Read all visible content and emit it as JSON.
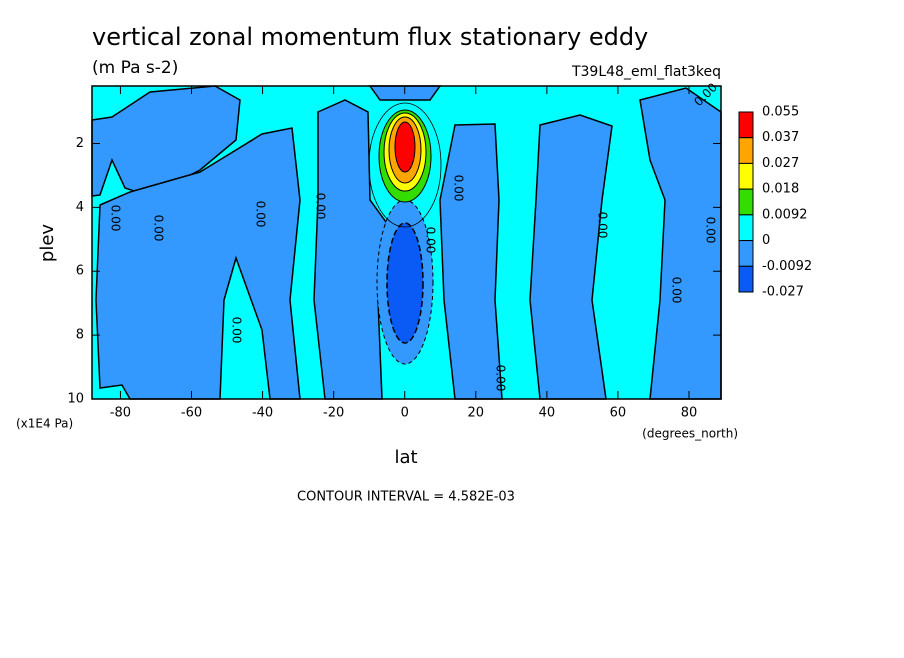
{
  "chart_data": {
    "type": "contour",
    "title": "vertical zonal momentum flux stationary eddy",
    "subtitle": "(m Pa s-2)",
    "dataset": "T39L48_eml_flat3keq",
    "x_label": "lat",
    "y_label": "plev",
    "x_units": "(degrees_north)",
    "y_units": "(x1E4 Pa)",
    "footnote": "CONTOUR INTERVAL = 4.582E-03",
    "xlim": [
      -88,
      89
    ],
    "xticks": [
      -80,
      -60,
      -40,
      -20,
      0,
      20,
      40,
      60,
      80
    ],
    "ylim": [
      10,
      0.2
    ],
    "yticks": [
      2,
      4,
      6,
      8,
      10
    ],
    "colorbar": {
      "levels": [
        0.055,
        0.037,
        0.027,
        0.018,
        0.0092,
        0,
        -0.0092,
        -0.027
      ],
      "colors": [
        "#ff0000",
        "#ffa500",
        "#ffff00",
        "#33dd00",
        "#00ffff",
        "#3399ff",
        "#0a5af5"
      ]
    },
    "contour_labels": [
      {
        "value": 0,
        "label": "0.00"
      },
      {
        "value": 0,
        "label": "0.00"
      },
      {
        "value": 0,
        "label": "0.00"
      },
      {
        "value": 0,
        "label": "0.00"
      },
      {
        "value": 0,
        "label": "0.00"
      },
      {
        "value": 0,
        "label": "0.00"
      },
      {
        "value": 0,
        "label": "0.00"
      },
      {
        "value": 0,
        "label": "0.00"
      },
      {
        "value": 0,
        "label": "0.00"
      },
      {
        "value": 0,
        "label": "0.00"
      },
      {
        "value": 0,
        "label": "0.00"
      },
      {
        "value": 0,
        "label": "0.00"
      }
    ]
  }
}
